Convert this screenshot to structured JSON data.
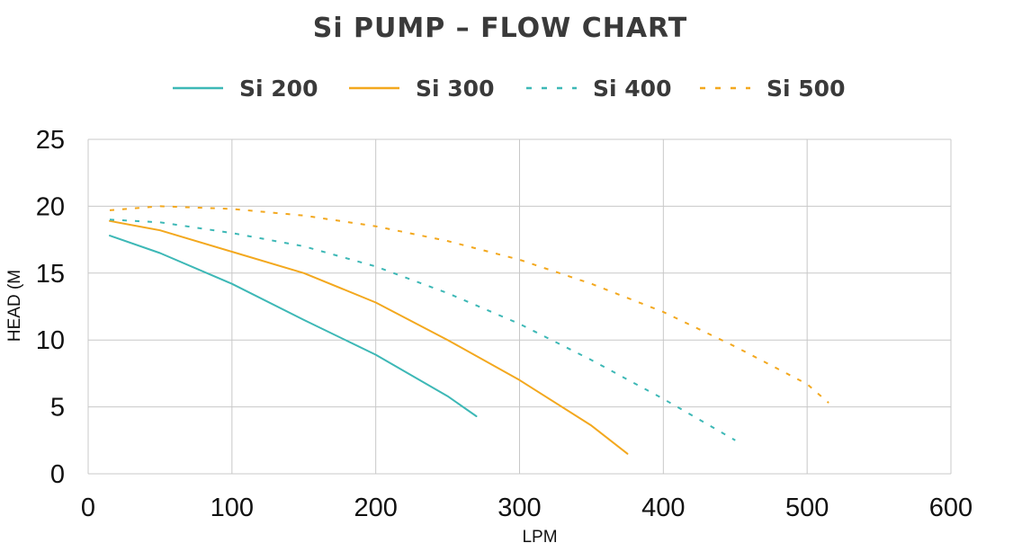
{
  "chart_data": {
    "type": "line",
    "title": "Si PUMP – FLOW CHART",
    "xlabel": "LPM",
    "ylabel": "HEAD (M",
    "xlim": [
      0,
      600
    ],
    "ylim": [
      0,
      25
    ],
    "x_ticks": [
      0,
      100,
      200,
      300,
      400,
      500,
      600
    ],
    "y_ticks": [
      0,
      5,
      10,
      15,
      20,
      25
    ],
    "grid": true,
    "legend_position": "top",
    "series": [
      {
        "name": "Si 200",
        "color": "#3db8b6",
        "style": "solid",
        "x": [
          15,
          50,
          100,
          150,
          200,
          250,
          270
        ],
        "y": [
          17.8,
          16.5,
          14.2,
          11.5,
          8.9,
          5.8,
          4.3
        ]
      },
      {
        "name": "Si 300",
        "color": "#f3a81e",
        "style": "solid",
        "x": [
          15,
          50,
          100,
          150,
          200,
          250,
          300,
          350,
          375
        ],
        "y": [
          18.9,
          18.2,
          16.6,
          15.0,
          12.8,
          10.0,
          7.0,
          3.6,
          1.5
        ]
      },
      {
        "name": "Si 400",
        "color": "#3db8b6",
        "style": "dashed",
        "x": [
          15,
          50,
          100,
          150,
          200,
          250,
          300,
          350,
          400,
          450
        ],
        "y": [
          19.0,
          18.8,
          18.0,
          17.0,
          15.5,
          13.5,
          11.2,
          8.5,
          5.6,
          2.5
        ]
      },
      {
        "name": "Si 500",
        "color": "#f3a81e",
        "style": "dashed",
        "x": [
          15,
          50,
          100,
          150,
          200,
          250,
          300,
          350,
          400,
          450,
          500,
          515
        ],
        "y": [
          19.7,
          20.0,
          19.8,
          19.3,
          18.5,
          17.4,
          16.0,
          14.2,
          12.1,
          9.5,
          6.7,
          5.3
        ]
      }
    ]
  }
}
